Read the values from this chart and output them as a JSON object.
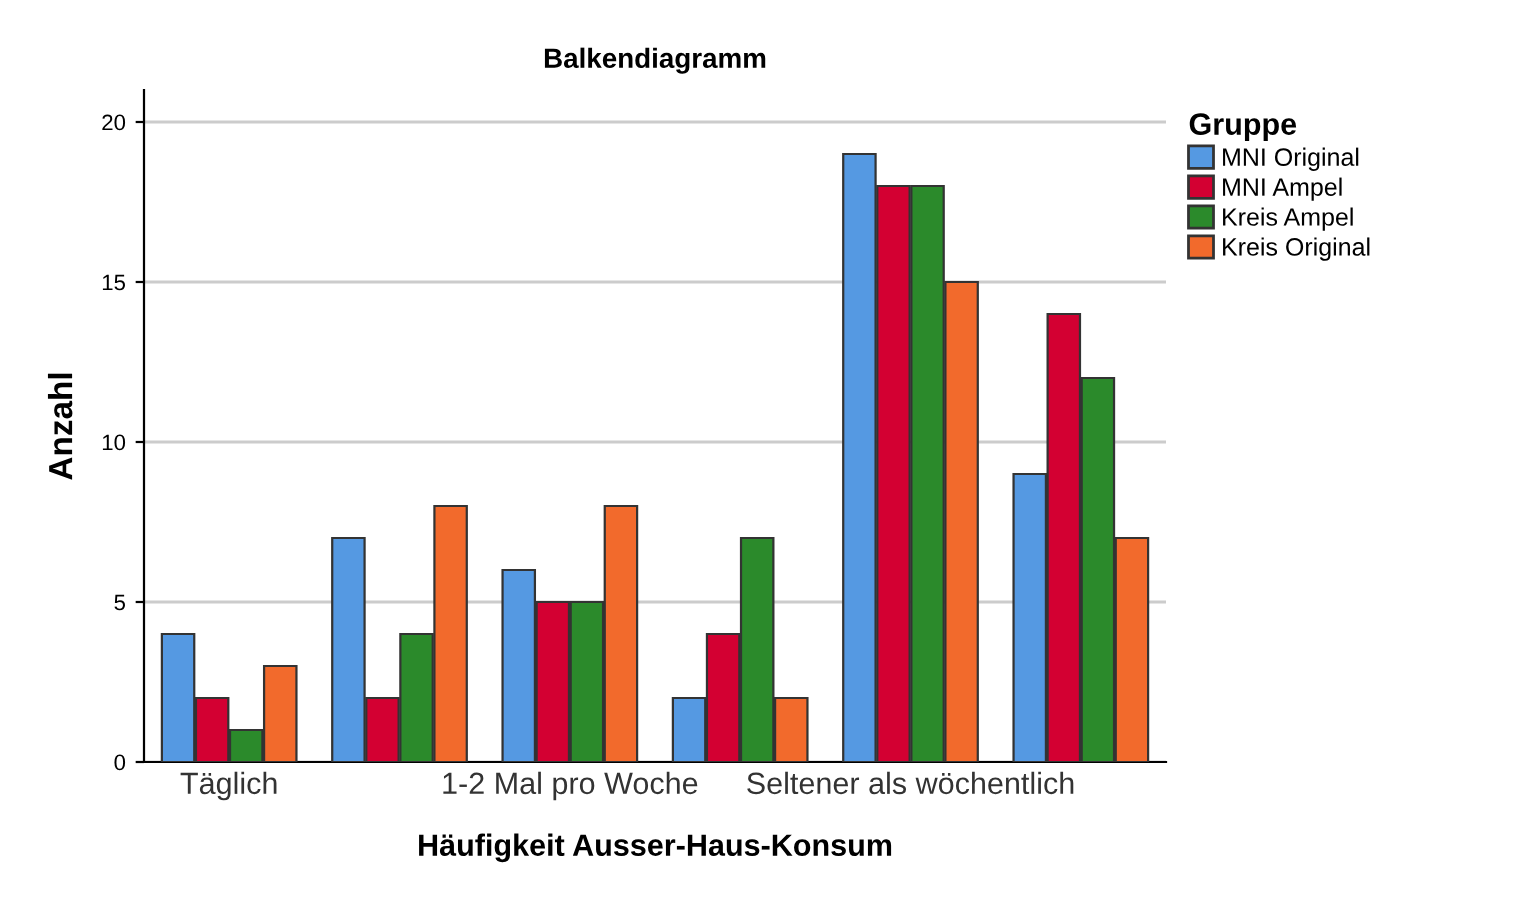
{
  "chart_data": {
    "type": "bar",
    "title": "Balkendiagramm",
    "xlabel": "Häufigkeit Ausser-Haus-Konsum",
    "ylabel": "Anzahl",
    "legend_title": "Gruppe",
    "categories": [
      "Täglich",
      null,
      "1-2 Mal pro Woche",
      null,
      "Seltener als wöchentlich",
      null
    ],
    "series": [
      {
        "name": "MNI Original",
        "color": "#5599e2",
        "values": [
          4,
          7,
          6,
          2,
          19,
          9
        ]
      },
      {
        "name": "MNI Ampel",
        "color": "#d30032",
        "values": [
          2,
          2,
          5,
          4,
          18,
          14
        ]
      },
      {
        "name": "Kreis Ampel",
        "color": "#2b8a2b",
        "values": [
          1,
          4,
          5,
          7,
          18,
          12
        ]
      },
      {
        "name": "Kreis Original",
        "color": "#f26a2c",
        "values": [
          3,
          8,
          8,
          2,
          15,
          7
        ]
      }
    ],
    "ylim": [
      0,
      21
    ],
    "yticks": [
      0,
      5,
      10,
      15,
      20
    ],
    "grid": "y",
    "legend": "top right"
  }
}
